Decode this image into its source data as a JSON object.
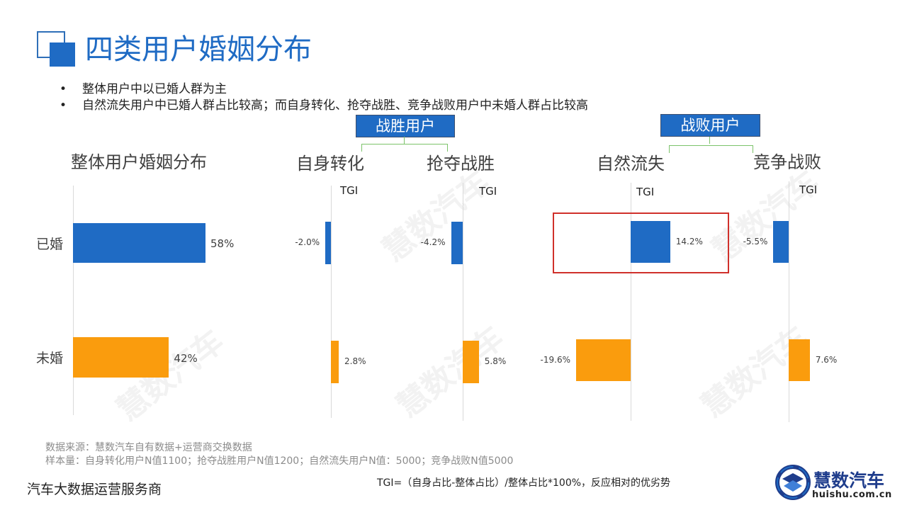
{
  "header": {
    "title": "四类用户婚姻分布",
    "bullets": [
      "整体用户中以已婚人群为主",
      "自然流失用户中已婚人群占比较高；而自身转化、抢夺战胜、竞争战败用户中未婚人群占比较高"
    ]
  },
  "groups": {
    "win": "战胜用户",
    "lose": "战败用户"
  },
  "panels": {
    "overall": "整体用户婚姻分布",
    "self": "自身转化",
    "seize": "抢夺战胜",
    "churn": "自然流失",
    "compete": "竞争战败"
  },
  "tgi_label": "TGI",
  "watermark": "慧数汽车",
  "colors": {
    "married": "#1f6bc4",
    "unmarried": "#fa9c0d",
    "accent": "#1f6bc4",
    "highlight": "#d0302b"
  },
  "chart_data": [
    {
      "type": "bar",
      "orientation": "horizontal",
      "title": "整体用户婚姻分布",
      "categories": [
        "已婚",
        "未婚"
      ],
      "values": [
        58,
        42
      ],
      "labels": [
        "58%",
        "42%"
      ],
      "xlim": [
        0,
        100
      ]
    },
    {
      "type": "bar",
      "orientation": "horizontal",
      "title": "自身转化",
      "xlabel": "TGI",
      "categories": [
        "已婚",
        "未婚"
      ],
      "values": [
        -2.0,
        2.8
      ],
      "labels": [
        "-2.0%",
        "2.8%"
      ],
      "xlim": [
        -25,
        15
      ]
    },
    {
      "type": "bar",
      "orientation": "horizontal",
      "title": "抢夺战胜",
      "xlabel": "TGI",
      "categories": [
        "已婚",
        "未婚"
      ],
      "values": [
        -4.2,
        5.8
      ],
      "labels": [
        "-4.2%",
        "5.8%"
      ],
      "xlim": [
        -25,
        15
      ]
    },
    {
      "type": "bar",
      "orientation": "horizontal",
      "title": "自然流失",
      "xlabel": "TGI",
      "categories": [
        "已婚",
        "未婚"
      ],
      "values": [
        14.2,
        -19.6
      ],
      "labels": [
        "14.2%",
        "-19.6%"
      ],
      "xlim": [
        -25,
        15
      ]
    },
    {
      "type": "bar",
      "orientation": "horizontal",
      "title": "竞争战败",
      "xlabel": "TGI",
      "categories": [
        "已婚",
        "未婚"
      ],
      "values": [
        -5.5,
        7.6
      ],
      "labels": [
        "-5.5%",
        "7.6%"
      ],
      "xlim": [
        -25,
        15
      ]
    }
  ],
  "footer": {
    "source": "数据来源：慧数汽车自有数据+运营商交换数据",
    "sample": "样本量：自身转化用户N值1100；抢夺战胜用户N值1200；自然流失用户N值：5000；竞争战败N值5000",
    "company": "汽车大数据运营服务商",
    "formula": "TGI=（自身占比-整体占比）/整体占比*100%，反应相对的优劣势"
  },
  "logo": {
    "name": "慧数汽车",
    "url": "huishu.com.cn"
  }
}
